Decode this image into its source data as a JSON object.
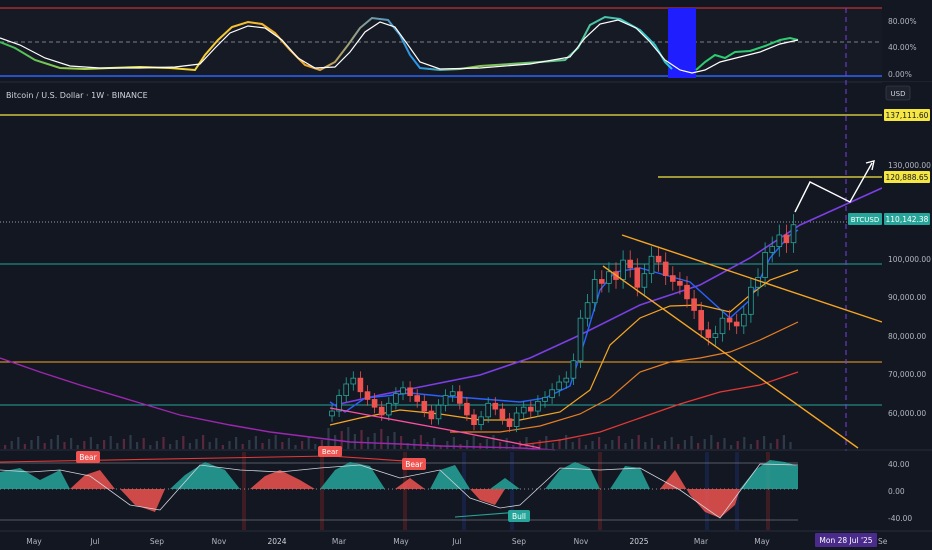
{
  "header": {
    "title": "Bitcoin / U.S. Dollar · 1W · BINANCE",
    "currency": "USD"
  },
  "colors": {
    "bg": "#131722",
    "up": "#26a69a",
    "down": "#ef5350",
    "yellow": "#f5e642",
    "orange": "#f5a623",
    "purple": "#7b3fe4",
    "blue": "#2962ff",
    "teal": "#26a69a"
  },
  "price_axis": {
    "ticks": [
      "130,000.00",
      "100,000.00",
      "90,000.00",
      "80,000.00",
      "70,000.00",
      "60,000.00"
    ],
    "labels": {
      "top_level": "137,111.60",
      "target": "120,888.65",
      "symbol": "BTCUSD",
      "last": "110,142.38"
    }
  },
  "osc_top": {
    "ticks": [
      "80.00%",
      "40.00%",
      "0.00%"
    ]
  },
  "osc_bottom": {
    "ticks": [
      "40.00",
      "0.00",
      "-40.00"
    ],
    "badges": [
      "Bear",
      "Bear",
      "Bear",
      "Bull"
    ]
  },
  "time_axis": {
    "ticks": [
      "May",
      "Jul",
      "Sep",
      "Nov",
      "2024",
      "Mar",
      "May",
      "Jul",
      "Sep",
      "Nov",
      "2025",
      "Mar",
      "May"
    ],
    "cursor": "Mon 28 Jul '25",
    "tail": "Se"
  },
  "chart_data": {
    "type": "candlestick",
    "title": "Bitcoin / U.S. Dollar · 1W · BINANCE",
    "ylabel": "USD",
    "ylim": [
      52000,
      142000
    ],
    "levels": [
      137111.6,
      120888.65,
      110142.38,
      98500,
      73500,
      62000
    ],
    "last_price": 110142.38,
    "closes": [
      62000,
      66000,
      69000,
      70500,
      67000,
      65000,
      63000,
      61000,
      64000,
      66500,
      68000,
      66000,
      64500,
      62000,
      60000,
      63500,
      66000,
      67000,
      64000,
      61000,
      58500,
      60500,
      64000,
      62500,
      60000,
      58000,
      61500,
      63000,
      62000,
      64500,
      65500,
      67500,
      69500,
      70500,
      75000,
      86000,
      90000,
      96000,
      95000,
      98000,
      96000,
      101000,
      99000,
      94000,
      97500,
      102000,
      100500,
      97000,
      95500,
      94500,
      91000,
      88000,
      83000,
      81000,
      82000,
      86000,
      85000,
      84000,
      87000,
      94000,
      96500,
      103000,
      104500,
      107500,
      105500,
      110142
    ]
  }
}
